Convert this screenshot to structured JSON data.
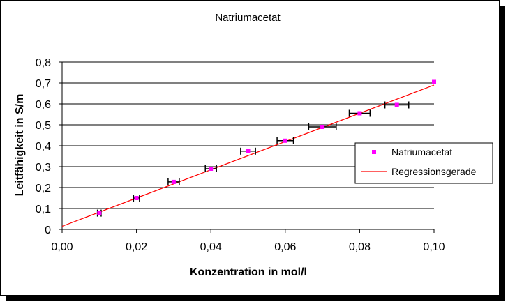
{
  "chart_data": {
    "type": "scatter",
    "title": "Natriumacetat",
    "xlabel": "Konzentration in mol/l",
    "ylabel": "Leitfähigkeit in S/m",
    "xlim": [
      0,
      0.1
    ],
    "ylim": [
      0,
      0.8
    ],
    "x_ticks": [
      "0,00",
      "0,02",
      "0,04",
      "0,06",
      "0,08",
      "0,10"
    ],
    "y_ticks": [
      "0",
      "0,1",
      "0,2",
      "0,3",
      "0,4",
      "0,5",
      "0,6",
      "0,7",
      "0,8"
    ],
    "x_tick_values": [
      0,
      0.02,
      0.04,
      0.06,
      0.08,
      0.1
    ],
    "y_tick_values": [
      0,
      0.1,
      0.2,
      0.3,
      0.4,
      0.5,
      0.6,
      0.7,
      0.8
    ],
    "grid": "horizontal",
    "legend_position": "right",
    "series": [
      {
        "name": "Natriumacetat",
        "kind": "points",
        "color": "#ff00ff",
        "points": [
          {
            "x": 0.01,
            "y": 0.078,
            "xerr": 0.0005
          },
          {
            "x": 0.02,
            "y": 0.15,
            "xerr": 0.0008
          },
          {
            "x": 0.03,
            "y": 0.227,
            "xerr": 0.0015
          },
          {
            "x": 0.04,
            "y": 0.29,
            "xerr": 0.0015
          },
          {
            "x": 0.05,
            "y": 0.374,
            "xerr": 0.002
          },
          {
            "x": 0.06,
            "y": 0.424,
            "xerr": 0.0022
          },
          {
            "x": 0.07,
            "y": 0.49,
            "xerr": 0.0037
          },
          {
            "x": 0.08,
            "y": 0.555,
            "xerr": 0.0028
          },
          {
            "x": 0.09,
            "y": 0.595,
            "xerr": 0.0032
          },
          {
            "x": 0.1,
            "y": 0.705,
            "xerr": 0.0
          }
        ]
      },
      {
        "name": "Regressionsgerade",
        "kind": "line",
        "color": "#ff0000",
        "x": [
          0.0,
          0.1
        ],
        "y": [
          0.015,
          0.69
        ]
      }
    ]
  }
}
